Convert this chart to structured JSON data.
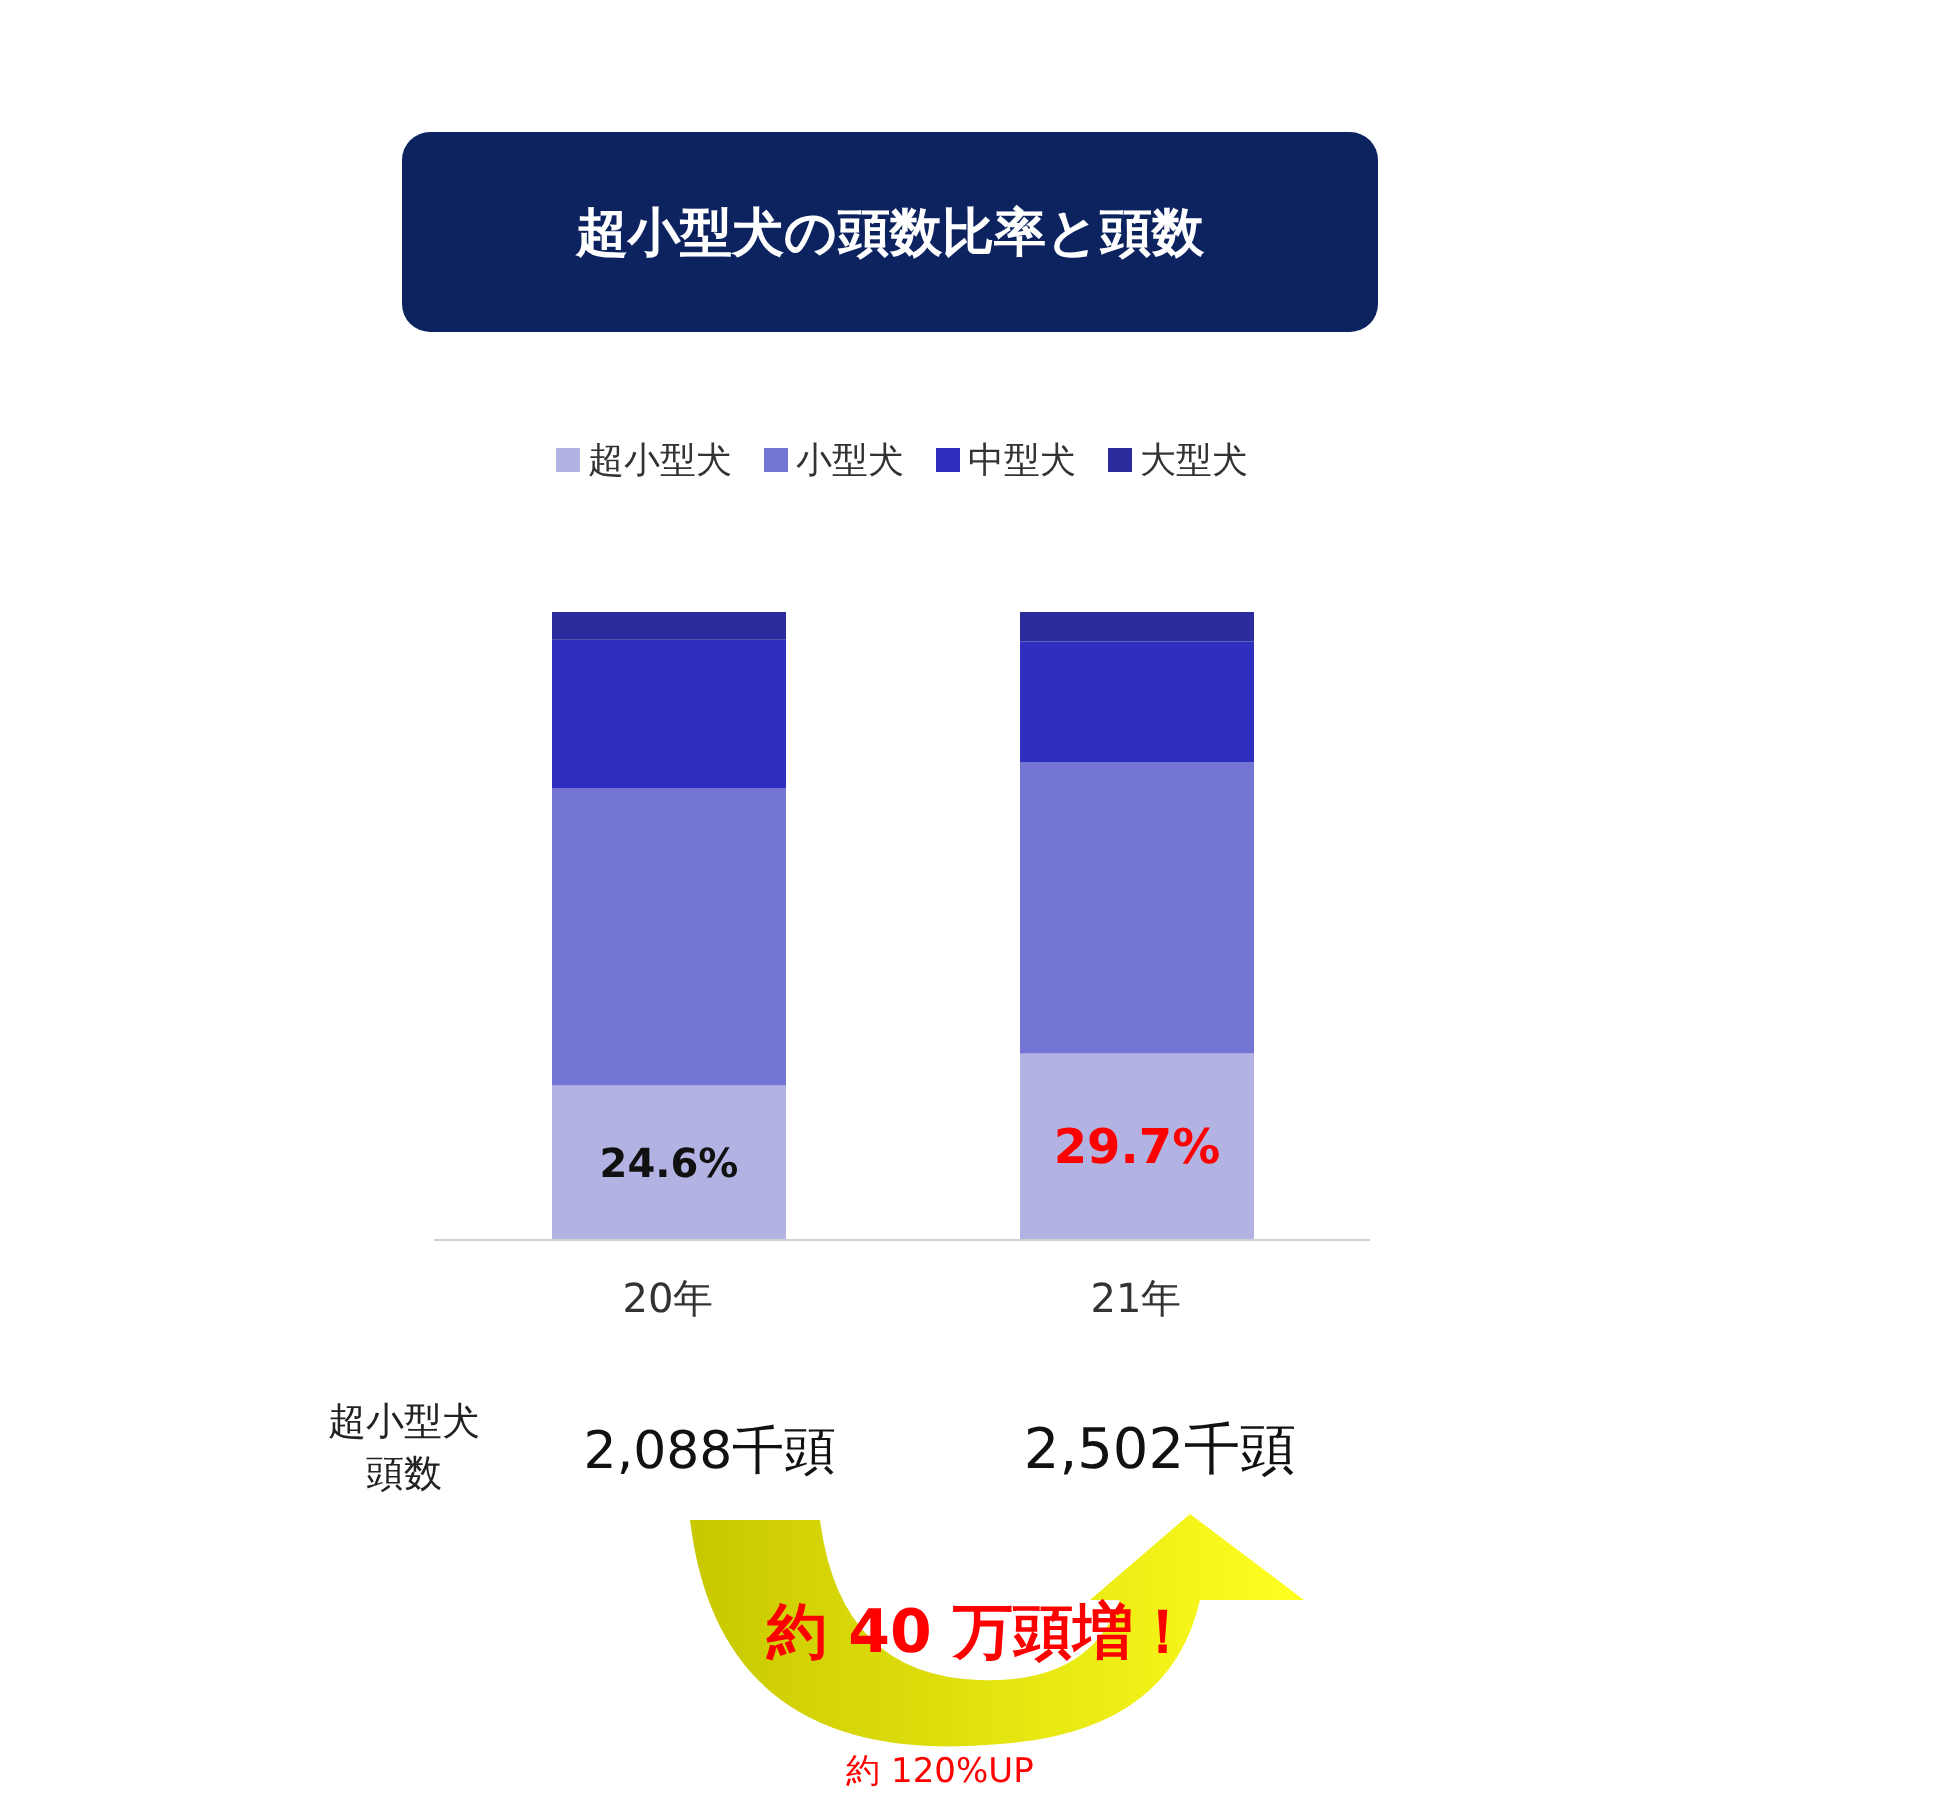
{
  "chart_data": {
    "type": "bar",
    "title": "超小型犬の頭数比率と頭数",
    "stacked": true,
    "categories": [
      "20年",
      "21年"
    ],
    "legend": "top",
    "series": [
      {
        "name": "超小型犬",
        "color": "#b3b3e3",
        "values": [
          24.6,
          29.7
        ],
        "value_labels": [
          "24.6%",
          "29.7%"
        ]
      },
      {
        "name": "小型犬",
        "color": "#7474d4",
        "values": [
          47.3,
          46.4
        ]
      },
      {
        "name": "中型犬",
        "color": "#2e2ebf",
        "values": [
          23.7,
          19.2
        ]
      },
      {
        "name": "大型犬",
        "color": "#2b2b9e",
        "values": [
          4.4,
          4.7
        ]
      }
    ],
    "annotations": [
      "超小型犬頭数",
      "2,088千頭",
      "2,502千頭",
      "約 40 万頭増！",
      "約 120%UP"
    ]
  }
}
